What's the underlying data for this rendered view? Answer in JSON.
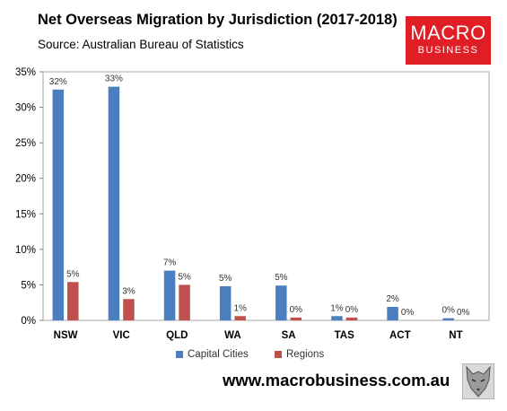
{
  "header": {
    "title": "Net Overseas Migration by Jurisdiction (2017-2018)",
    "subtitle": "Source: Australian Bureau of Statistics"
  },
  "logo": {
    "line1": "MACRO",
    "line2": "BUSINESS"
  },
  "footer": {
    "url": "www.macrobusiness.com.au"
  },
  "colors": {
    "capital": "#4a7ebf",
    "regions": "#c0504d",
    "logo_bg": "#e01e26",
    "plot_border": "#a6a6a6"
  },
  "chart_data": {
    "type": "bar",
    "categories": [
      "NSW",
      "VIC",
      "QLD",
      "WA",
      "SA",
      "TAS",
      "ACT",
      "NT"
    ],
    "series": [
      {
        "name": "Capital Cities",
        "values": [
          32.5,
          32.9,
          7.0,
          4.8,
          4.9,
          0.6,
          1.9,
          0.3
        ],
        "labels": [
          "32%",
          "33%",
          "7%",
          "5%",
          "5%",
          "1%",
          "2%",
          "0%"
        ]
      },
      {
        "name": "Regions",
        "values": [
          5.4,
          3.0,
          5.0,
          0.6,
          0.4,
          0.4,
          0.0,
          0.0
        ],
        "labels": [
          "5%",
          "3%",
          "5%",
          "1%",
          "0%",
          "0%",
          "0%",
          "0%"
        ]
      }
    ],
    "yticks": [
      "0%",
      "5%",
      "10%",
      "15%",
      "20%",
      "25%",
      "30%",
      "35%"
    ],
    "ylim": [
      0,
      35
    ],
    "legend_position": "bottom",
    "grid": false
  }
}
